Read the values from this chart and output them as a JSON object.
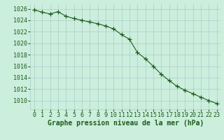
{
  "x": [
    0,
    1,
    2,
    3,
    4,
    5,
    6,
    7,
    8,
    9,
    10,
    11,
    12,
    13,
    14,
    15,
    16,
    17,
    18,
    19,
    20,
    21,
    22,
    23
  ],
  "y": [
    1025.8,
    1025.4,
    1025.1,
    1025.5,
    1024.7,
    1024.3,
    1024.0,
    1023.7,
    1023.4,
    1023.0,
    1022.5,
    1021.5,
    1020.7,
    1018.4,
    1017.3,
    1016.0,
    1014.6,
    1013.5,
    1012.5,
    1011.8,
    1011.2,
    1010.6,
    1010.0,
    1009.5
  ],
  "line_color": "#1a5c1a",
  "marker_color": "#1a5c1a",
  "background_color": "#cceedd",
  "grid_color": "#aacccc",
  "xlabel": "Graphe pression niveau de la mer (hPa)",
  "ylim_min": 1008.5,
  "ylim_max": 1026.8,
  "yticks": [
    1010,
    1012,
    1014,
    1016,
    1018,
    1020,
    1022,
    1024,
    1026
  ],
  "xticks": [
    0,
    1,
    2,
    3,
    4,
    5,
    6,
    7,
    8,
    9,
    10,
    11,
    12,
    13,
    14,
    15,
    16,
    17,
    18,
    19,
    20,
    21,
    22,
    23
  ],
  "tick_label_color": "#1a5c1a",
  "xlabel_color": "#1a5c1a",
  "xlabel_fontsize": 7.0,
  "tick_fontsize": 6.0,
  "marker_size": 4,
  "line_width": 0.8
}
